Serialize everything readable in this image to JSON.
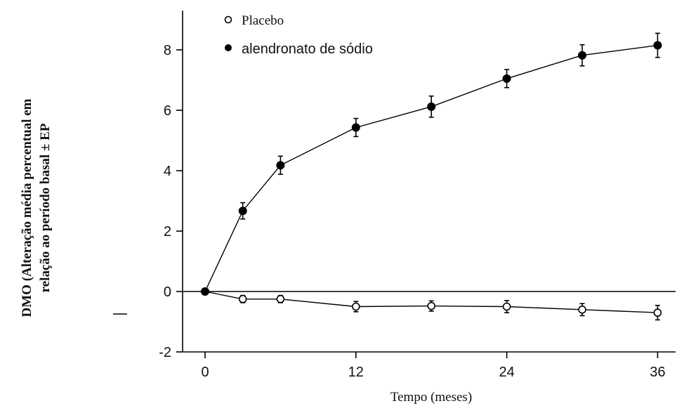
{
  "chart_data": {
    "type": "line",
    "xlabel": "Tempo (meses)",
    "ylabel_lines": [
      "DMO (Alteração média percentual em",
      "relação ao período basal ± EP"
    ],
    "x_ticks": [
      0,
      12,
      24,
      36
    ],
    "y_ticks": [
      -2,
      0,
      2,
      4,
      6,
      8
    ],
    "xlim": [
      -2,
      37
    ],
    "ylim": [
      -2,
      9.3
    ],
    "reference_line_y": 0,
    "legend_placement": "top-left",
    "series": [
      {
        "name": "Placebo",
        "marker": "open-circle",
        "x": [
          0,
          3,
          6,
          12,
          18,
          24,
          30,
          36
        ],
        "y": [
          0,
          -0.25,
          -0.25,
          -0.5,
          -0.48,
          -0.5,
          -0.6,
          -0.7
        ],
        "err": [
          0,
          0.12,
          0.12,
          0.17,
          0.17,
          0.2,
          0.2,
          0.24
        ]
      },
      {
        "name": "alendronato de sódio",
        "marker": "filled-circle",
        "x": [
          0,
          3,
          6,
          12,
          18,
          24,
          30,
          36
        ],
        "y": [
          0,
          2.67,
          4.18,
          5.43,
          6.12,
          7.05,
          7.82,
          8.15
        ],
        "err": [
          0,
          0.27,
          0.3,
          0.3,
          0.35,
          0.3,
          0.35,
          0.4
        ]
      }
    ]
  }
}
